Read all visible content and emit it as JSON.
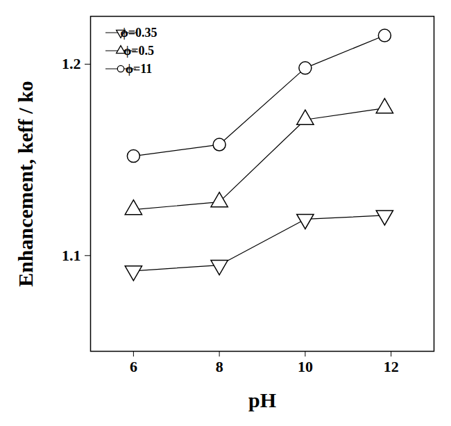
{
  "chart_data": {
    "type": "line",
    "x_label": "pH",
    "y_label": "Enhancement, keff / ko",
    "x": [
      6,
      8,
      10,
      11.85
    ],
    "series": [
      {
        "name": "ϕ=0.35",
        "color": "#000000",
        "marker": "triangle-down",
        "values": [
          1.092,
          1.095,
          1.119,
          1.121
        ]
      },
      {
        "name": "ϕ=0.5",
        "color": "#000000",
        "marker": "triangle",
        "values": [
          1.124,
          1.128,
          1.171,
          1.177
        ]
      },
      {
        "name": "ϕ=11",
        "color": "#000000",
        "marker": "circle",
        "values": [
          1.152,
          1.158,
          1.198,
          1.215
        ]
      }
    ],
    "xlim": [
      5,
      13
    ],
    "ylim": [
      1.05,
      1.225
    ],
    "xticks": [
      6,
      8,
      10,
      12
    ],
    "yticks": [
      1.1,
      1.2
    ],
    "legend": "upper left",
    "grid": false
  }
}
